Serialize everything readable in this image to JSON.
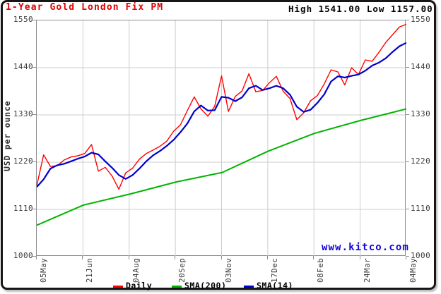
{
  "header": {
    "title": "1-Year Gold London Fix PM",
    "stats": "High 1541.00 Low 1157.00"
  },
  "watermark": {
    "text": "www.kitco.com"
  },
  "axes": {
    "y_label": "USD per ounce"
  },
  "legend": [
    {
      "label": "Daily",
      "color": "#ff0000"
    },
    {
      "label": "SMA(200)",
      "color": "#00b400"
    },
    {
      "label": "SMA(14)",
      "color": "#0000cc"
    }
  ],
  "colors": {
    "title": "#e10000",
    "watermark": "#1504d8",
    "grid": "#cdcdcd",
    "plot_border": "#8f8f8f",
    "axis_text": "#3c3c3c"
  },
  "chart_data": {
    "type": "line",
    "title": "1-Year Gold London Fix PM",
    "ylabel": "USD per ounce",
    "ylim": [
      1000,
      1550
    ],
    "grid": true,
    "legend_position": "bottom",
    "high": 1541.0,
    "low": 1157.0,
    "y_ticks": [
      1550,
      1440,
      1330,
      1220,
      1110,
      1000
    ],
    "x_ticks": [
      "05May",
      "21Jun",
      "04Aug",
      "20Sep",
      "03Nov",
      "17Dec",
      "08Feb",
      "24Mar",
      "04May"
    ],
    "x_span": "May 2010 to May 2011, weekly samples, evenly spaced unless x_frac given",
    "series": [
      {
        "name": "Daily",
        "color": "#ff0000",
        "width": 1.4,
        "z": 2,
        "values": [
          1165,
          1237,
          1210,
          1212,
          1225,
          1232,
          1235,
          1240,
          1261,
          1199,
          1208,
          1188,
          1157,
          1195,
          1206,
          1227,
          1240,
          1248,
          1257,
          1269,
          1292,
          1307,
          1340,
          1372,
          1344,
          1327,
          1350,
          1421,
          1338,
          1373,
          1386,
          1426,
          1384,
          1387,
          1405,
          1420,
          1385,
          1368,
          1319,
          1335,
          1363,
          1375,
          1402,
          1435,
          1430,
          1400,
          1440,
          1424,
          1458,
          1455,
          1476,
          1499,
          1517,
          1535,
          1541
        ]
      },
      {
        "name": "SMA(14)",
        "color": "#0000cc",
        "width": 2.2,
        "z": 3,
        "values": [
          1162,
          1180,
          1205,
          1213,
          1216,
          1222,
          1228,
          1233,
          1242,
          1238,
          1222,
          1207,
          1190,
          1181,
          1190,
          1205,
          1222,
          1236,
          1246,
          1258,
          1272,
          1290,
          1310,
          1338,
          1352,
          1340,
          1341,
          1372,
          1370,
          1362,
          1371,
          1392,
          1398,
          1388,
          1392,
          1398,
          1392,
          1377,
          1349,
          1337,
          1342,
          1358,
          1378,
          1408,
          1420,
          1417,
          1421,
          1424,
          1433,
          1445,
          1452,
          1462,
          1477,
          1490,
          1498
        ]
      },
      {
        "name": "SMA(200)",
        "color": "#00b400",
        "width": 2,
        "z": 1,
        "x_frac": [
          0,
          0.126,
          0.253,
          0.378,
          0.502,
          0.627,
          0.751,
          0.876,
          1
        ],
        "values": [
          1073,
          1120,
          1146,
          1174,
          1196,
          1246,
          1287,
          1317,
          1344
        ]
      }
    ]
  }
}
